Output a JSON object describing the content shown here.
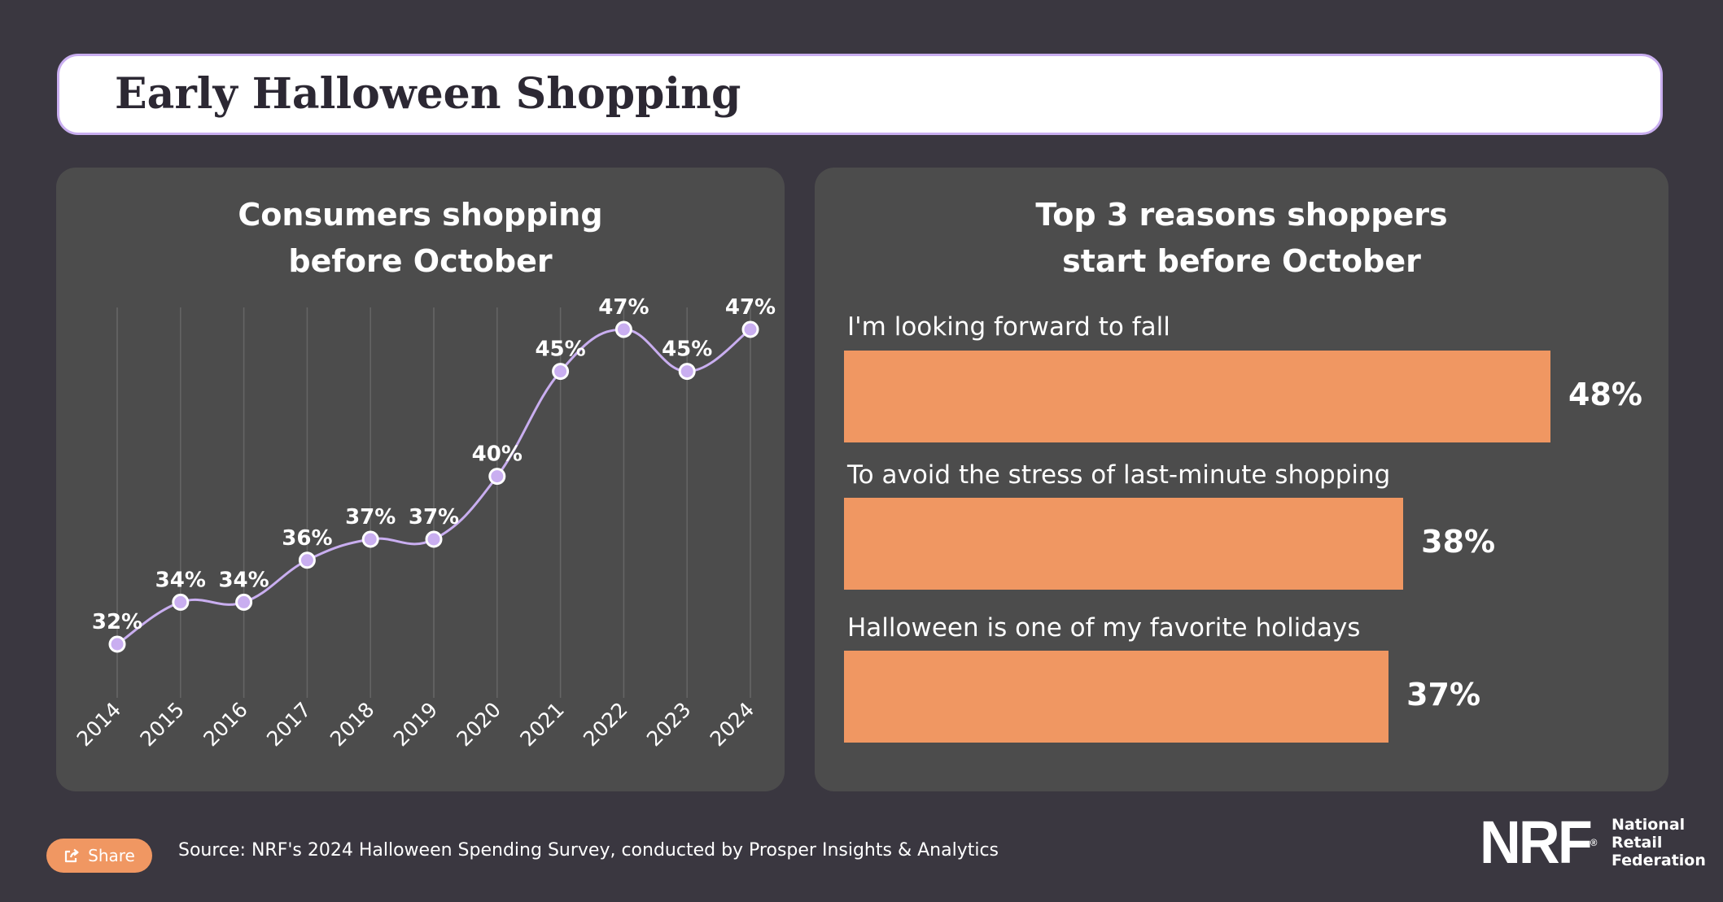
{
  "page": {
    "title": "Early Halloween Shopping"
  },
  "colors": {
    "background": "#3a3740",
    "panel": "#4c4c4c",
    "line": "#c9aef0",
    "bar": "#f09762",
    "title_border": "#c9aef0"
  },
  "left_panel": {
    "title_line1": "Consumers shopping",
    "title_line2": "before October"
  },
  "right_panel": {
    "title_line1": "Top 3 reasons shoppers",
    "title_line2": "start before October"
  },
  "chart_data": [
    {
      "type": "line",
      "title": "Consumers shopping before October",
      "x": [
        "2014",
        "2015",
        "2016",
        "2017",
        "2018",
        "2019",
        "2020",
        "2021",
        "2022",
        "2023",
        "2024"
      ],
      "values": [
        32,
        34,
        34,
        36,
        37,
        37,
        40,
        45,
        47,
        45,
        47
      ],
      "data_labels": [
        "32%",
        "34%",
        "34%",
        "36%",
        "37%",
        "37%",
        "40%",
        "45%",
        "47%",
        "45%",
        "47%"
      ],
      "ylabel": "",
      "ylim": [
        30,
        47
      ],
      "grid": "vertical"
    },
    {
      "type": "bar",
      "orientation": "horizontal",
      "title": "Top 3 reasons shoppers start before October",
      "categories": [
        "I'm looking forward to fall",
        "To avoid the stress of last-minute shopping",
        "Halloween is one of my favorite holidays"
      ],
      "values": [
        48,
        38,
        37
      ],
      "data_labels": [
        "48%",
        "38%",
        "37%"
      ],
      "xlim": [
        0,
        48
      ]
    }
  ],
  "footer": {
    "share_label": "Share",
    "share_icon": "share-icon",
    "source": "Source: NRF's 2024 Halloween Spending Survey, conducted by Prosper Insights & Analytics",
    "logo": {
      "mark": "NRF",
      "name_line1": "National",
      "name_line2": "Retail",
      "name_line3": "Federation"
    }
  }
}
